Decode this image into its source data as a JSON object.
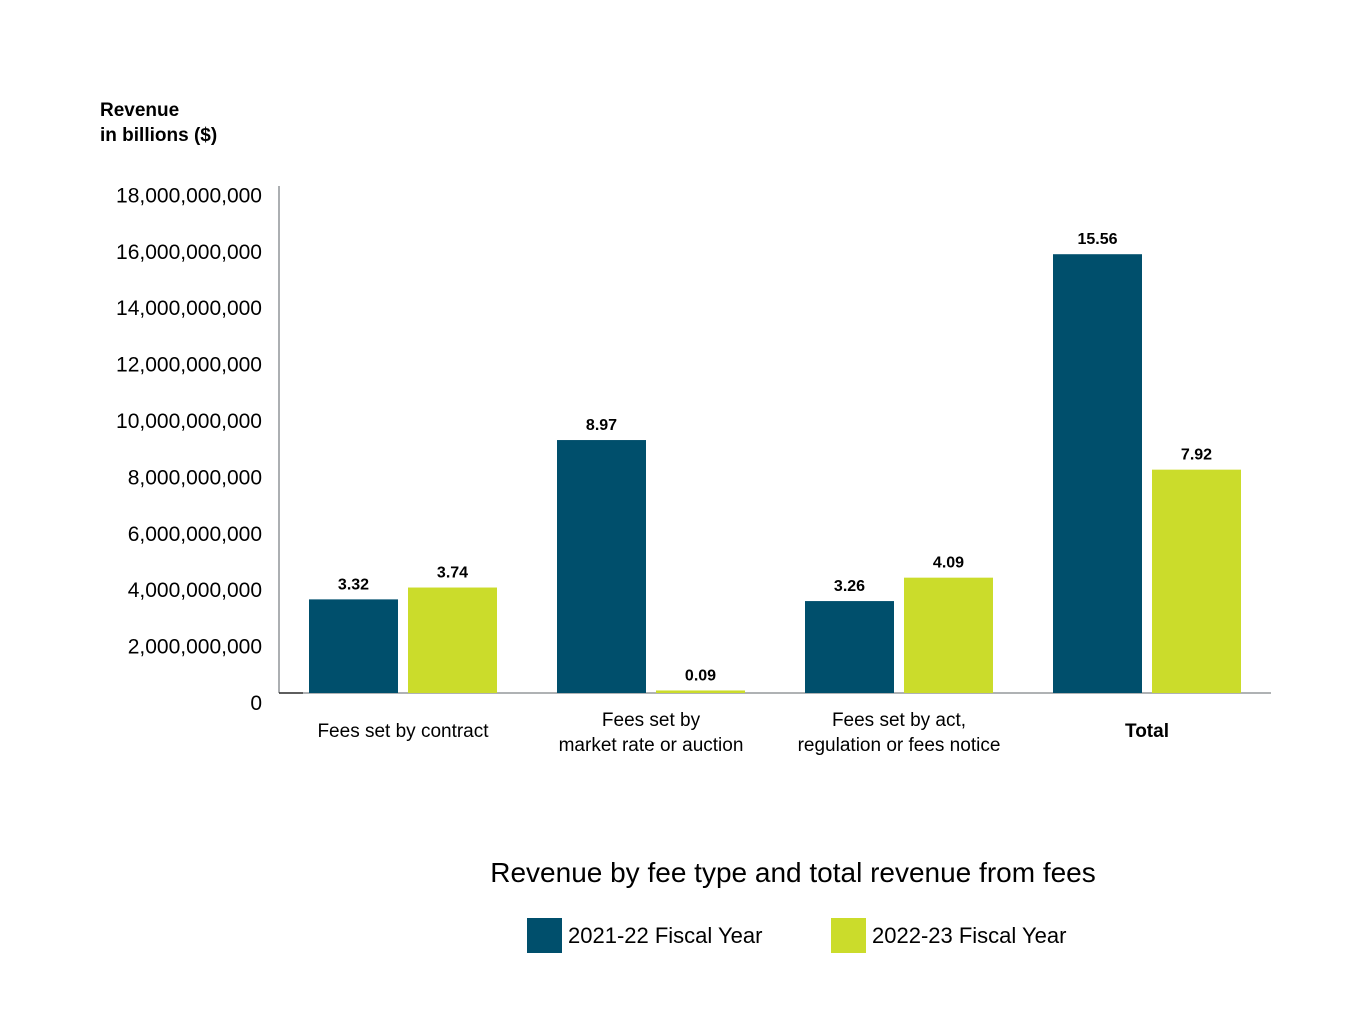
{
  "chart_data": {
    "type": "bar",
    "title": "Revenue by fee type and total revenue from fees",
    "ylabel": [
      "Revenue",
      "in billions ($)"
    ],
    "xlabel": "",
    "ylim": [
      0,
      18000000000
    ],
    "yticks": [
      0,
      2000000000,
      4000000000,
      6000000000,
      8000000000,
      10000000000,
      12000000000,
      14000000000,
      16000000000,
      18000000000
    ],
    "ytick_labels": [
      "0",
      "2,000,000,000",
      "4,000,000,000",
      "6,000,000,000",
      "8,000,000,000",
      "10,000,000,000",
      "12,000,000,000",
      "14,000,000,000",
      "16,000,000,000",
      "18,000,000,000"
    ],
    "categories": [
      {
        "lines": [
          "Fees set by contract"
        ],
        "bold": false
      },
      {
        "lines": [
          "Fees set by",
          "market rate or auction"
        ],
        "bold": false
      },
      {
        "lines": [
          "Fees set by act,",
          "regulation or fees notice"
        ],
        "bold": false
      },
      {
        "lines": [
          "Total"
        ],
        "bold": true
      }
    ],
    "series": [
      {
        "name": "2021-22 Fiscal Year",
        "color": "#004f6c",
        "values": [
          3.32,
          8.97,
          3.26,
          15.56
        ],
        "labels": [
          "3.32",
          "8.97",
          "3.26",
          "15.56"
        ]
      },
      {
        "name": "2022-23 Fiscal Year",
        "color": "#cbdc2b",
        "values": [
          3.74,
          0.09,
          4.09,
          7.92
        ],
        "labels": [
          "3.74",
          "0.09",
          "4.09",
          "7.92"
        ]
      }
    ],
    "value_unit": "billions",
    "grid": false,
    "legend_position": "bottom"
  }
}
